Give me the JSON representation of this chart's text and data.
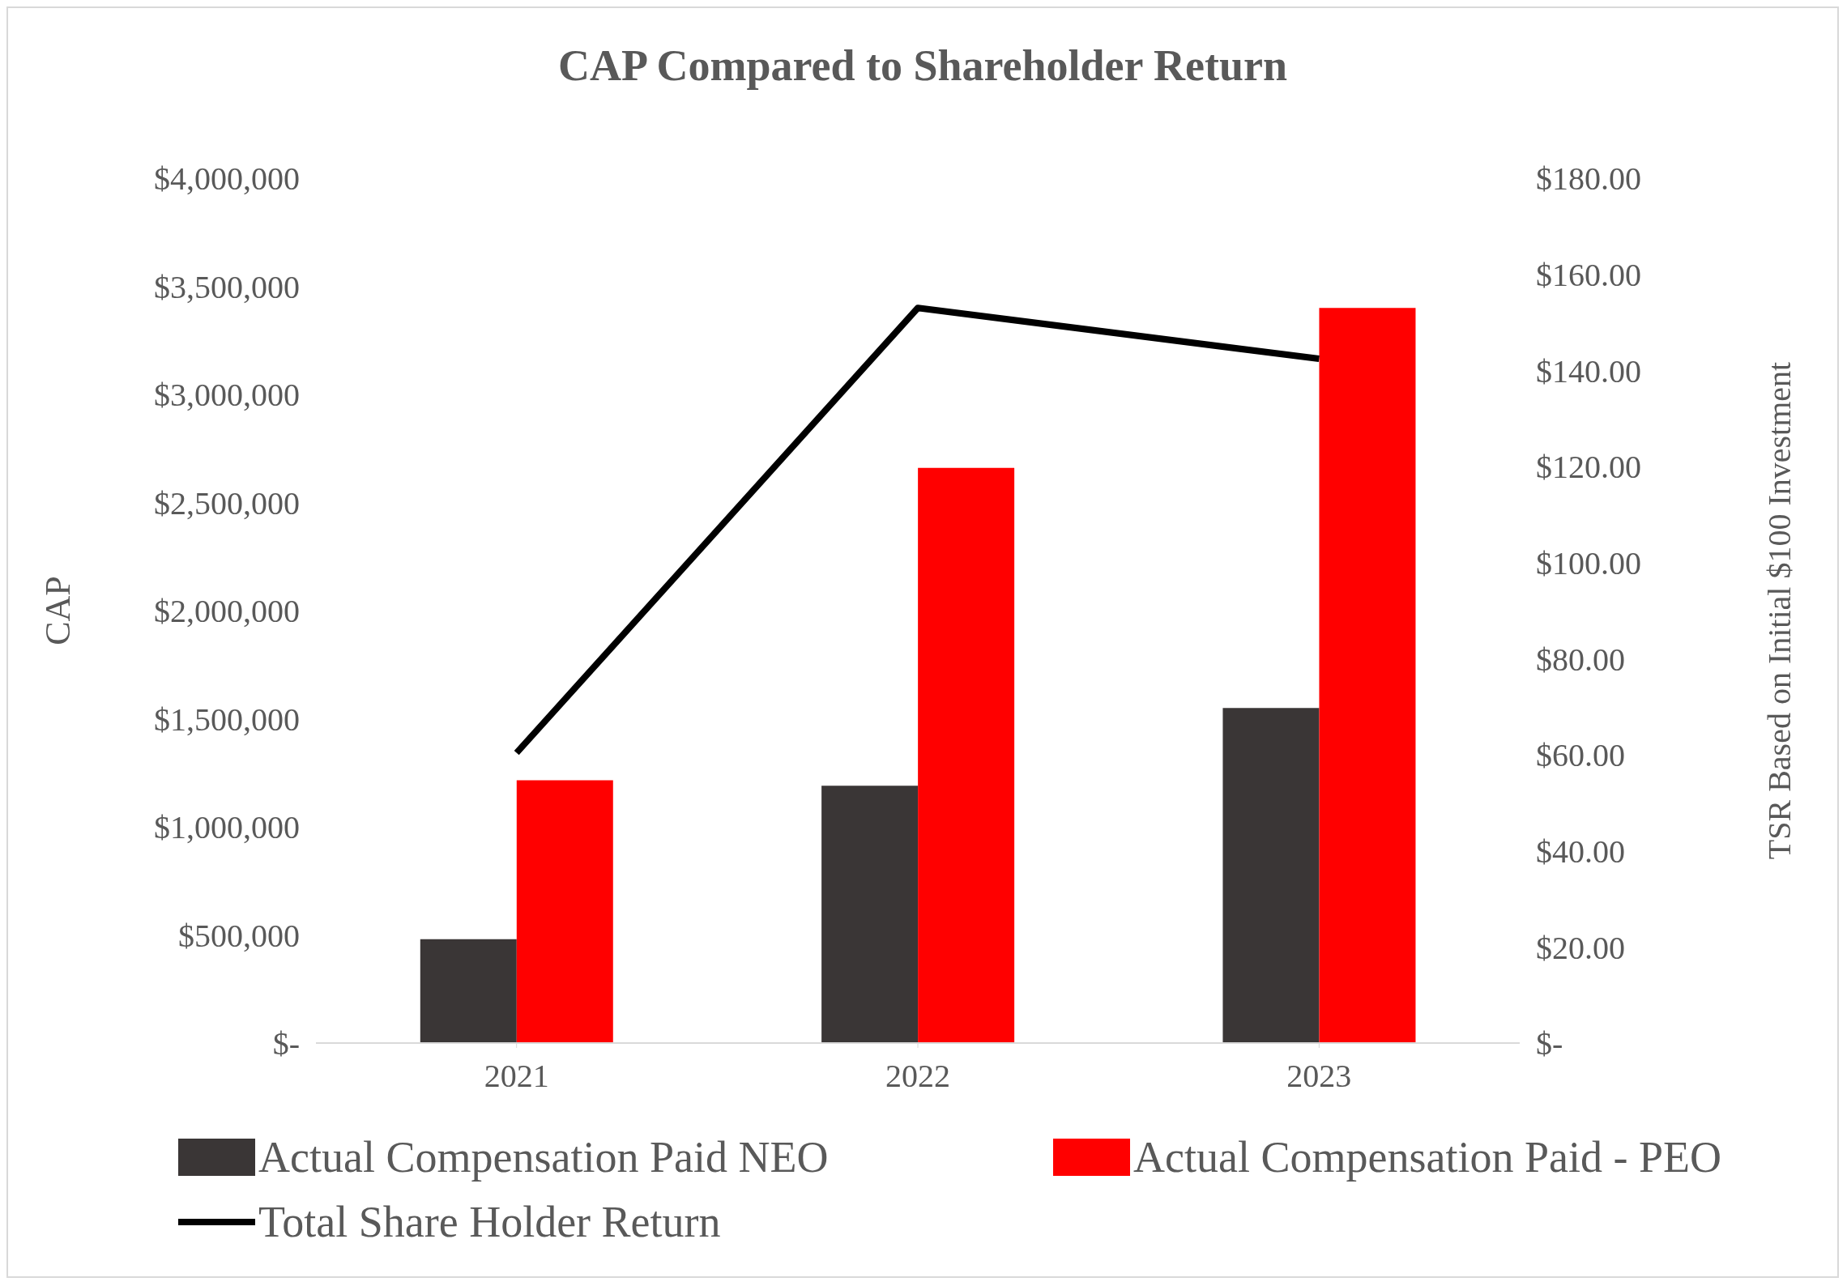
{
  "chart_data": {
    "type": "bar",
    "title": "CAP Compared to Shareholder Return",
    "ylabel": "CAP",
    "y2label": "TSR Based on Initial $100 Investment",
    "categories": [
      "2021",
      "2022",
      "2023"
    ],
    "series": [
      {
        "name": "Actual Compensation Paid NEO",
        "color": "#3a3636",
        "values": [
          480000,
          1190000,
          1550000
        ]
      },
      {
        "name": "Actual Compensation Paid - PEO",
        "color": "#ff0000",
        "values": [
          1215000,
          2660000,
          3400000
        ]
      },
      {
        "name": "Total Share Holder Return",
        "type": "line",
        "axis": "y2",
        "color": "#000000",
        "values": [
          60.4,
          153,
          142.4
        ]
      }
    ],
    "ylim": [
      0,
      4000000
    ],
    "yticks": [
      {
        "value": 0,
        "label": "$-"
      },
      {
        "value": 500000,
        "label": "$500,000"
      },
      {
        "value": 1000000,
        "label": "$1,000,000"
      },
      {
        "value": 1500000,
        "label": "$1,500,000"
      },
      {
        "value": 2000000,
        "label": "$2,000,000"
      },
      {
        "value": 2500000,
        "label": "$2,500,000"
      },
      {
        "value": 3000000,
        "label": "$3,000,000"
      },
      {
        "value": 3500000,
        "label": "$3,500,000"
      },
      {
        "value": 4000000,
        "label": "$4,000,000"
      }
    ],
    "y2lim": [
      0,
      180
    ],
    "y2ticks": [
      {
        "value": 0,
        "label": "$-"
      },
      {
        "value": 20,
        "label": "$20.00"
      },
      {
        "value": 40,
        "label": "$40.00"
      },
      {
        "value": 60,
        "label": "$60.00"
      },
      {
        "value": 80,
        "label": "$80.00"
      },
      {
        "value": 100,
        "label": "$100.00"
      },
      {
        "value": 120,
        "label": "$120.00"
      },
      {
        "value": 140,
        "label": "$140.00"
      },
      {
        "value": 160,
        "label": "$160.00"
      },
      {
        "value": 180,
        "label": "$180.00"
      }
    ],
    "grid": false,
    "legend": "bottom",
    "marker": "none"
  }
}
